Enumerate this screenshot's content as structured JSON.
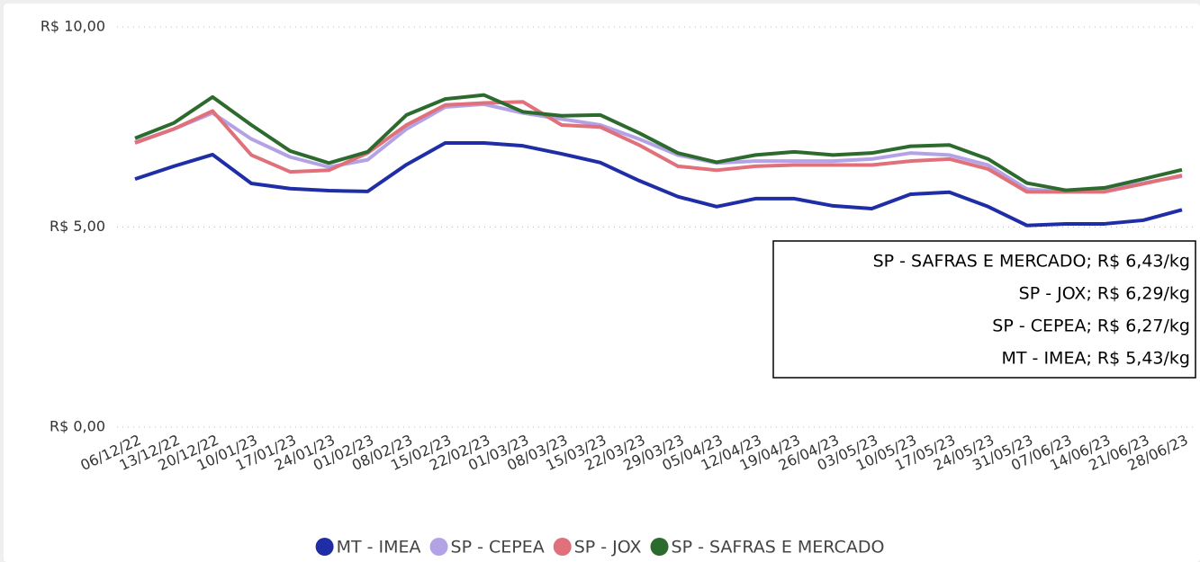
{
  "chart_data": {
    "type": "line",
    "categories": [
      "06/12/22",
      "13/12/22",
      "20/12/22",
      "10/01/23",
      "17/01/23",
      "24/01/23",
      "01/02/23",
      "08/02/23",
      "15/02/23",
      "22/02/23",
      "01/03/23",
      "08/03/23",
      "15/03/23",
      "22/03/23",
      "29/03/23",
      "05/04/23",
      "12/04/23",
      "19/04/23",
      "26/04/23",
      "03/05/23",
      "10/05/23",
      "17/05/23",
      "24/05/23",
      "31/05/23",
      "07/06/23",
      "14/06/23",
      "21/06/23",
      "28/06/23"
    ],
    "series": [
      {
        "name": "MT - IMEA",
        "color": "#1f2ea6",
        "values": [
          6.2,
          6.52,
          6.81,
          6.09,
          5.96,
          5.91,
          5.89,
          6.56,
          7.1,
          7.1,
          7.03,
          6.83,
          6.61,
          6.16,
          5.76,
          5.51,
          5.71,
          5.71,
          5.53,
          5.46,
          5.82,
          5.87,
          5.51,
          5.04,
          5.08,
          5.08,
          5.17,
          5.43
        ]
      },
      {
        "name": "SP - CEPEA",
        "color": "#b4a2e6",
        "values": [
          7.12,
          7.45,
          7.85,
          7.2,
          6.75,
          6.5,
          6.68,
          7.45,
          8.0,
          8.07,
          7.85,
          7.7,
          7.55,
          7.2,
          6.8,
          6.6,
          6.65,
          6.65,
          6.65,
          6.7,
          6.85,
          6.8,
          6.55,
          5.95,
          5.88,
          5.92,
          6.1,
          6.27
        ]
      },
      {
        "name": "SP - JOX",
        "color": "#e0707a",
        "values": [
          7.1,
          7.45,
          7.9,
          6.8,
          6.38,
          6.42,
          6.85,
          7.55,
          8.05,
          8.1,
          8.13,
          7.55,
          7.5,
          7.05,
          6.52,
          6.42,
          6.52,
          6.55,
          6.55,
          6.55,
          6.65,
          6.7,
          6.45,
          5.88,
          5.88,
          5.88,
          6.08,
          6.29
        ]
      },
      {
        "name": "SP - SAFRAS E MERCADO",
        "color": "#2d6a2d",
        "values": [
          7.22,
          7.6,
          8.25,
          7.55,
          6.9,
          6.6,
          6.88,
          7.8,
          8.2,
          8.3,
          7.88,
          7.78,
          7.8,
          7.35,
          6.85,
          6.62,
          6.8,
          6.88,
          6.8,
          6.85,
          7.02,
          7.05,
          6.7,
          6.1,
          5.92,
          5.98,
          6.2,
          6.43
        ]
      }
    ],
    "ylim": [
      0,
      10
    ],
    "yticks": [
      {
        "value": 0,
        "label": "R$ 0,00"
      },
      {
        "value": 5,
        "label": "R$ 5,00"
      },
      {
        "value": 10,
        "label": "R$ 10,00"
      }
    ],
    "grid": true,
    "annotations": [
      "SP - SAFRAS E MERCADO; R$ 6,43/kg",
      "SP - JOX; R$ 6,29/kg",
      "SP - CEPEA; R$ 6,27/kg",
      "MT - IMEA; R$ 5,43/kg"
    ]
  }
}
